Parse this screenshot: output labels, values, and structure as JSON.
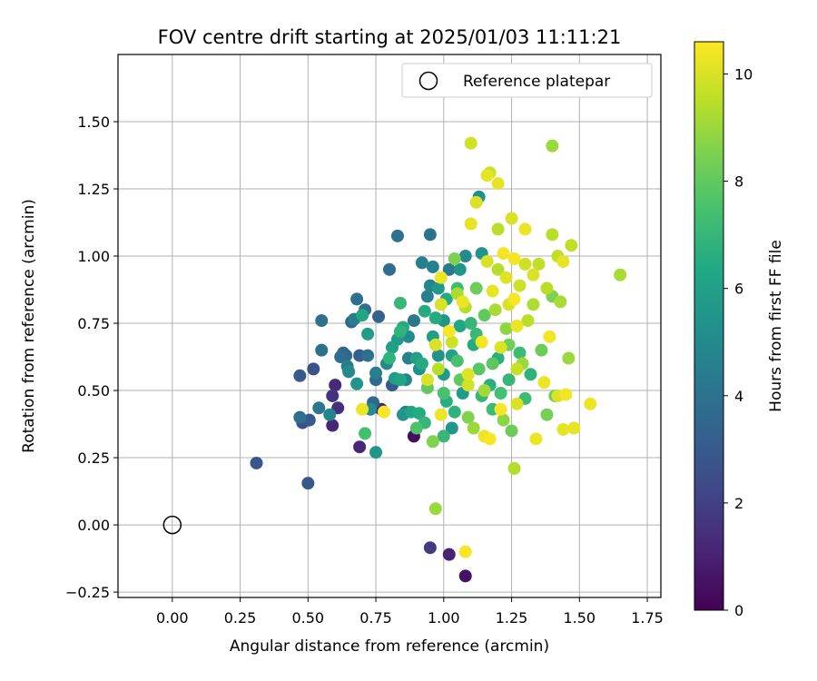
{
  "chart_data": {
    "type": "scatter",
    "title": "FOV centre drift starting at 2025/01/03 11:11:21",
    "xlabel": "Angular distance from reference (arcmin)",
    "ylabel": "Rotation from reference (arcmin)",
    "xlim": [
      -0.2,
      1.8
    ],
    "ylim": [
      -0.27,
      1.75
    ],
    "x_ticks": [
      0.0,
      0.25,
      0.5,
      0.75,
      1.0,
      1.25,
      1.5,
      1.75
    ],
    "x_tick_labels": [
      "0.00",
      "0.25",
      "0.50",
      "0.75",
      "1.00",
      "1.25",
      "1.50",
      "1.75"
    ],
    "y_ticks": [
      -0.25,
      0.0,
      0.25,
      0.5,
      0.75,
      1.0,
      1.25,
      1.5
    ],
    "y_tick_labels": [
      "−0.25",
      "0.00",
      "0.25",
      "0.50",
      "0.75",
      "1.00",
      "1.25",
      "1.50"
    ],
    "grid": true,
    "legend": {
      "position": "top-right",
      "label": "Reference platepar"
    },
    "reference_point": {
      "x": 0.0,
      "y": 0.0
    },
    "colorbar": {
      "label": "Hours from first FF file",
      "range": [
        0,
        10.6
      ],
      "ticks": [
        0,
        2,
        4,
        6,
        8,
        10
      ],
      "tick_labels": [
        "0",
        "2",
        "4",
        "6",
        "8",
        "10"
      ],
      "colormap": "viridis"
    },
    "points": [
      [
        0.31,
        0.23,
        2.8
      ],
      [
        0.5,
        0.155,
        2.9
      ],
      [
        0.48,
        0.38,
        2.6
      ],
      [
        0.47,
        0.4,
        3.8
      ],
      [
        0.505,
        0.39,
        3.0
      ],
      [
        0.52,
        0.58,
        2.7
      ],
      [
        0.47,
        0.555,
        3.0
      ],
      [
        0.55,
        0.76,
        3.9
      ],
      [
        0.55,
        0.65,
        4.0
      ],
      [
        0.54,
        0.435,
        4.2
      ],
      [
        0.59,
        0.37,
        1.2
      ],
      [
        0.59,
        0.48,
        1.5
      ],
      [
        0.6,
        0.52,
        1.3
      ],
      [
        0.61,
        0.435,
        1.4
      ],
      [
        0.58,
        0.41,
        4.8
      ],
      [
        0.62,
        0.625,
        3.8
      ],
      [
        0.64,
        0.63,
        3.5
      ],
      [
        0.645,
        0.59,
        4.5
      ],
      [
        0.65,
        0.57,
        5.0
      ],
      [
        0.66,
        0.755,
        3.5
      ],
      [
        0.67,
        0.765,
        4.4
      ],
      [
        0.68,
        0.84,
        4.0
      ],
      [
        0.68,
        0.525,
        5.5
      ],
      [
        0.69,
        0.29,
        1.2
      ],
      [
        0.69,
        0.63,
        3.2
      ],
      [
        0.7,
        0.78,
        6.2
      ],
      [
        0.7,
        0.43,
        10.3
      ],
      [
        0.71,
        0.8,
        3.8
      ],
      [
        0.71,
        0.34,
        7.4
      ],
      [
        0.72,
        0.71,
        5.8
      ],
      [
        0.72,
        0.63,
        3.9
      ],
      [
        0.73,
        0.43,
        5.0
      ],
      [
        0.74,
        0.455,
        3.6
      ],
      [
        0.75,
        0.27,
        5.5
      ],
      [
        0.75,
        0.54,
        3.6
      ],
      [
        0.75,
        0.565,
        4.5
      ],
      [
        0.76,
        0.775,
        3.3
      ],
      [
        0.77,
        0.43,
        1.3
      ],
      [
        0.78,
        0.42,
        10.5
      ],
      [
        0.79,
        0.6,
        5.0
      ],
      [
        0.8,
        0.95,
        3.8
      ],
      [
        0.8,
        0.62,
        6.8
      ],
      [
        0.81,
        0.66,
        6.0
      ],
      [
        0.81,
        0.52,
        3.0
      ],
      [
        0.82,
        0.545,
        5.8
      ],
      [
        0.83,
        1.075,
        4.0
      ],
      [
        0.83,
        0.69,
        5.8
      ],
      [
        0.84,
        0.825,
        7.0
      ],
      [
        0.84,
        0.72,
        6.8
      ],
      [
        0.84,
        0.54,
        6.2
      ],
      [
        0.85,
        0.41,
        5.5
      ],
      [
        0.85,
        0.735,
        6.5
      ],
      [
        0.86,
        0.42,
        4.5
      ],
      [
        0.86,
        0.54,
        4.8
      ],
      [
        0.87,
        0.7,
        5.0
      ],
      [
        0.88,
        0.42,
        6.2
      ],
      [
        0.89,
        0.33,
        0.4
      ],
      [
        0.89,
        0.76,
        4.2
      ],
      [
        0.9,
        0.62,
        6.0
      ],
      [
        0.9,
        0.36,
        7.6
      ],
      [
        0.91,
        0.415,
        6.5
      ],
      [
        0.92,
        0.975,
        4.5
      ],
      [
        0.92,
        0.6,
        6.5
      ],
      [
        0.93,
        0.795,
        6.5
      ],
      [
        0.93,
        0.38,
        7.0
      ],
      [
        0.94,
        0.54,
        10.0
      ],
      [
        0.94,
        0.85,
        4.5
      ],
      [
        0.94,
        0.51,
        8.0
      ],
      [
        0.95,
        1.08,
        4.0
      ],
      [
        0.95,
        0.89,
        4.8
      ],
      [
        0.95,
        -0.085,
        1.8
      ],
      [
        0.96,
        0.96,
        4.6
      ],
      [
        0.96,
        0.31,
        8.6
      ],
      [
        0.97,
        0.06,
        9.0
      ],
      [
        0.97,
        0.67,
        10.0
      ],
      [
        0.97,
        0.77,
        6.5
      ],
      [
        0.98,
        0.58,
        9.5
      ],
      [
        0.98,
        0.88,
        5.6
      ],
      [
        0.99,
        0.92,
        10.3
      ],
      [
        0.99,
        0.41,
        10.3
      ],
      [
        1.0,
        0.76,
        5.5
      ],
      [
        1.0,
        0.49,
        7.5
      ],
      [
        1.0,
        0.33,
        7.0
      ],
      [
        1.0,
        0.56,
        5.8
      ],
      [
        1.01,
        0.84,
        6.4
      ],
      [
        1.02,
        -0.11,
        1.0
      ],
      [
        1.02,
        0.95,
        4.2
      ],
      [
        1.02,
        0.72,
        10.5
      ],
      [
        1.03,
        0.68,
        9.8
      ],
      [
        1.03,
        0.36,
        5.5
      ],
      [
        1.04,
        0.99,
        8.5
      ],
      [
        1.04,
        0.42,
        6.8
      ],
      [
        1.05,
        0.88,
        7.3
      ],
      [
        1.05,
        0.61,
        7.5
      ],
      [
        1.06,
        0.95,
        5.5
      ],
      [
        1.06,
        0.54,
        8.0
      ],
      [
        1.07,
        0.83,
        10.3
      ],
      [
        1.07,
        0.49,
        5.8
      ],
      [
        1.08,
        -0.19,
        0.5
      ],
      [
        1.08,
        -0.1,
        10.5
      ],
      [
        1.08,
        1.0,
        5.0
      ],
      [
        1.08,
        0.81,
        9.5
      ],
      [
        1.09,
        0.56,
        10.1
      ],
      [
        1.09,
        0.4,
        8.6
      ],
      [
        1.1,
        1.42,
        9.8
      ],
      [
        1.1,
        0.75,
        7.0
      ],
      [
        1.1,
        1.12,
        10.2
      ],
      [
        1.11,
        0.67,
        6.5
      ],
      [
        1.11,
        0.36,
        9.0
      ],
      [
        1.12,
        1.2,
        10.0
      ],
      [
        1.12,
        0.88,
        8.2
      ],
      [
        1.13,
        1.22,
        5.2
      ],
      [
        1.13,
        0.58,
        7.8
      ],
      [
        1.14,
        0.48,
        7.0
      ],
      [
        1.14,
        1.01,
        5.5
      ],
      [
        1.15,
        0.33,
        10.3
      ],
      [
        1.15,
        0.78,
        8.0
      ],
      [
        1.16,
        1.3,
        10.2
      ],
      [
        1.16,
        0.98,
        10.0
      ],
      [
        1.17,
        0.52,
        6.6
      ],
      [
        1.17,
        1.31,
        9.8
      ],
      [
        1.17,
        0.32,
        10.5
      ],
      [
        1.18,
        0.87,
        10.2
      ],
      [
        1.18,
        0.43,
        7.2
      ],
      [
        1.19,
        0.8,
        9.2
      ],
      [
        1.2,
        1.27,
        10.2
      ],
      [
        1.2,
        0.62,
        6.6
      ],
      [
        1.2,
        1.1,
        9.5
      ],
      [
        1.21,
        0.66,
        10.0
      ],
      [
        1.21,
        0.49,
        7.4
      ],
      [
        1.22,
        1.01,
        10.4
      ],
      [
        1.22,
        0.39,
        8.8
      ],
      [
        1.23,
        0.92,
        10.1
      ],
      [
        1.23,
        0.73,
        8.8
      ],
      [
        1.24,
        0.82,
        10.0
      ],
      [
        1.24,
        0.54,
        7.0
      ],
      [
        1.25,
        1.14,
        10.0
      ],
      [
        1.25,
        0.35,
        8.2
      ],
      [
        1.26,
        0.99,
        10.4
      ],
      [
        1.26,
        0.21,
        9.4
      ],
      [
        1.27,
        0.74,
        10.3
      ],
      [
        1.27,
        0.45,
        10.0
      ],
      [
        1.28,
        0.89,
        9.8
      ],
      [
        1.28,
        0.64,
        7.2
      ],
      [
        1.29,
        0.6,
        9.0
      ],
      [
        1.3,
        1.1,
        10.3
      ],
      [
        1.3,
        0.97,
        9.8
      ],
      [
        1.3,
        0.47,
        7.2
      ],
      [
        1.31,
        0.76,
        9.5
      ],
      [
        1.32,
        0.56,
        6.8
      ],
      [
        1.33,
        0.82,
        9.3
      ],
      [
        1.33,
        0.93,
        10.0
      ],
      [
        1.34,
        0.32,
        10.3
      ],
      [
        1.35,
        0.97,
        9.6
      ],
      [
        1.36,
        0.65,
        8.2
      ],
      [
        1.37,
        0.53,
        10.3
      ],
      [
        1.38,
        0.88,
        9.5
      ],
      [
        1.38,
        0.41,
        8.4
      ],
      [
        1.39,
        0.7,
        10.4
      ],
      [
        1.4,
        1.41,
        9.0
      ],
      [
        1.4,
        0.85,
        8.5
      ],
      [
        1.4,
        1.08,
        9.5
      ],
      [
        1.41,
        0.48,
        8.2
      ],
      [
        1.42,
        1.0,
        9.6
      ],
      [
        1.42,
        0.48,
        10.0
      ],
      [
        1.43,
        0.83,
        9.2
      ],
      [
        1.44,
        0.98,
        10.2
      ],
      [
        1.44,
        0.355,
        10.2
      ],
      [
        1.45,
        0.485,
        10.4
      ],
      [
        1.46,
        0.62,
        9.0
      ],
      [
        1.47,
        1.04,
        9.6
      ],
      [
        1.48,
        0.36,
        10.2
      ],
      [
        1.54,
        0.45,
        10.3
      ],
      [
        1.65,
        0.93,
        9.2
      ],
      [
        0.63,
        0.64,
        3.6
      ],
      [
        0.87,
        0.62,
        4.6
      ],
      [
        0.91,
        0.58,
        5.2
      ],
      [
        0.96,
        0.7,
        5.9
      ],
      [
        1.03,
        0.63,
        6.1
      ],
      [
        1.06,
        0.74,
        6.3
      ],
      [
        1.12,
        0.71,
        7.1
      ],
      [
        1.18,
        0.6,
        7.9
      ],
      [
        1.24,
        0.67,
        8.3
      ],
      [
        1.01,
        0.46,
        6.6
      ],
      [
        0.98,
        0.63,
        5.4
      ],
      [
        1.15,
        0.5,
        9.1
      ],
      [
        1.27,
        0.58,
        9.7
      ],
      [
        1.05,
        0.86,
        9.2
      ],
      [
        1.2,
        0.95,
        9.4
      ],
      [
        0.99,
        0.82,
        10.0
      ],
      [
        1.14,
        0.68,
        10.4
      ],
      [
        1.21,
        0.43,
        10.5
      ],
      [
        1.09,
        0.52,
        9.9
      ],
      [
        1.26,
        0.84,
        10.5
      ]
    ]
  }
}
